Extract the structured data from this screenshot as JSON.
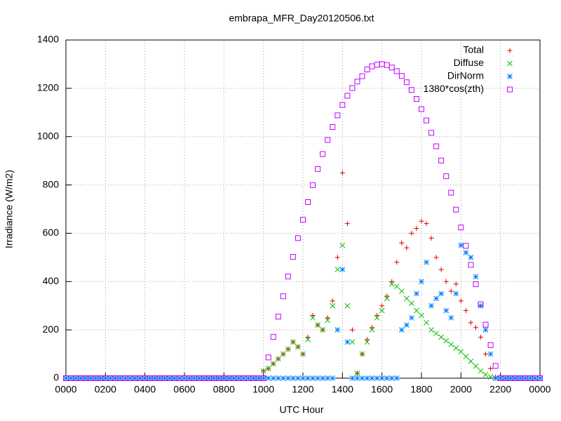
{
  "chart_data": {
    "type": "scatter",
    "title": "embrapa_MFR_Day20120506.txt",
    "xlabel": "UTC Hour",
    "ylabel": "Irradiance (W/m2)",
    "xlim": [
      0,
      24
    ],
    "xticks": [
      {
        "value": 0,
        "label": "0000"
      },
      {
        "value": 2,
        "label": "0200"
      },
      {
        "value": 4,
        "label": "0400"
      },
      {
        "value": 6,
        "label": "0600"
      },
      {
        "value": 8,
        "label": "0800"
      },
      {
        "value": 10,
        "label": "1000"
      },
      {
        "value": 12,
        "label": "1200"
      },
      {
        "value": 14,
        "label": "1400"
      },
      {
        "value": 16,
        "label": "1600"
      },
      {
        "value": 18,
        "label": "1800"
      },
      {
        "value": 20,
        "label": "2000"
      },
      {
        "value": 22,
        "label": "2200"
      },
      {
        "value": 24,
        "label": "0000"
      }
    ],
    "ylim": [
      0,
      1400
    ],
    "yticks": [
      0,
      200,
      400,
      600,
      800,
      1000,
      1200,
      1400
    ],
    "grid": true,
    "legend": "top right",
    "x": [
      0,
      0.25,
      0.5,
      0.75,
      1,
      1.25,
      1.5,
      1.75,
      2,
      2.25,
      2.5,
      2.75,
      3,
      3.25,
      3.5,
      3.75,
      4,
      4.25,
      4.5,
      4.75,
      5,
      5.25,
      5.5,
      5.75,
      6,
      6.25,
      6.5,
      6.75,
      7,
      7.25,
      7.5,
      7.75,
      8,
      8.25,
      8.5,
      8.75,
      9,
      9.25,
      9.5,
      9.75,
      10,
      10.25,
      10.5,
      10.75,
      11,
      11.25,
      11.5,
      11.75,
      12,
      12.25,
      12.5,
      12.75,
      13,
      13.25,
      13.5,
      13.75,
      14,
      14.25,
      14.5,
      14.75,
      15,
      15.25,
      15.5,
      15.75,
      16,
      16.25,
      16.5,
      16.75,
      17,
      17.25,
      17.5,
      17.75,
      18,
      18.25,
      18.5,
      18.75,
      19,
      19.25,
      19.5,
      19.75,
      20,
      20.25,
      20.5,
      20.75,
      21,
      21.25,
      21.5,
      21.75,
      22,
      22.25,
      22.5,
      22.75,
      23,
      23.25,
      23.5,
      23.75,
      24
    ],
    "series": [
      {
        "name": "Total",
        "color": "#e00000",
        "marker": "plus",
        "values": [
          0,
          0,
          0,
          0,
          0,
          0,
          0,
          0,
          0,
          0,
          0,
          0,
          0,
          0,
          0,
          0,
          0,
          0,
          0,
          0,
          0,
          0,
          0,
          0,
          0,
          0,
          0,
          0,
          0,
          0,
          0,
          0,
          0,
          0,
          0,
          0,
          0,
          0,
          0,
          0,
          30,
          40,
          60,
          80,
          100,
          120,
          150,
          130,
          100,
          170,
          260,
          220,
          200,
          250,
          320,
          500,
          850,
          640,
          200,
          20,
          100,
          160,
          210,
          260,
          300,
          340,
          400,
          480,
          560,
          540,
          600,
          620,
          650,
          640,
          580,
          500,
          450,
          400,
          360,
          390,
          320,
          280,
          230,
          210,
          170,
          100,
          40,
          5,
          0,
          0,
          0,
          0,
          0,
          0,
          0,
          0,
          0
        ]
      },
      {
        "name": "Diffuse",
        "color": "#00c000",
        "marker": "cross",
        "values": [
          0,
          0,
          0,
          0,
          0,
          0,
          0,
          0,
          0,
          0,
          0,
          0,
          0,
          0,
          0,
          0,
          0,
          0,
          0,
          0,
          0,
          0,
          0,
          0,
          0,
          0,
          0,
          0,
          0,
          0,
          0,
          0,
          0,
          0,
          0,
          0,
          0,
          0,
          0,
          0,
          30,
          40,
          60,
          80,
          100,
          120,
          150,
          130,
          100,
          160,
          250,
          220,
          200,
          240,
          300,
          450,
          550,
          300,
          150,
          20,
          100,
          150,
          200,
          250,
          280,
          330,
          390,
          380,
          360,
          330,
          310,
          280,
          260,
          230,
          200,
          185,
          170,
          155,
          140,
          125,
          110,
          90,
          70,
          50,
          30,
          15,
          5,
          0,
          0,
          0,
          0,
          0,
          0,
          0,
          0,
          0,
          0
        ]
      },
      {
        "name": "DirNorm",
        "color": "#0080ff",
        "marker": "star",
        "values": [
          0,
          0,
          0,
          0,
          0,
          0,
          0,
          0,
          0,
          0,
          0,
          0,
          0,
          0,
          0,
          0,
          0,
          0,
          0,
          0,
          0,
          0,
          0,
          0,
          0,
          0,
          0,
          0,
          0,
          0,
          0,
          0,
          0,
          0,
          0,
          0,
          0,
          0,
          0,
          0,
          0,
          0,
          0,
          0,
          0,
          0,
          0,
          0,
          0,
          0,
          0,
          0,
          0,
          0,
          0,
          200,
          450,
          150,
          0,
          0,
          0,
          0,
          0,
          0,
          0,
          0,
          0,
          0,
          200,
          220,
          250,
          350,
          400,
          480,
          300,
          330,
          350,
          280,
          250,
          350,
          550,
          520,
          500,
          420,
          300,
          200,
          100,
          0,
          0,
          0,
          0,
          0,
          0,
          0,
          0,
          0,
          0
        ]
      },
      {
        "name": "1380*cos(zth)",
        "color": "#c000ff",
        "marker": "square",
        "values": [
          0,
          0,
          0,
          0,
          0,
          0,
          0,
          0,
          0,
          0,
          0,
          0,
          0,
          0,
          0,
          0,
          0,
          0,
          0,
          0,
          0,
          0,
          0,
          0,
          0,
          0,
          0,
          0,
          0,
          0,
          0,
          0,
          0,
          0,
          0,
          0,
          0,
          0,
          0,
          0,
          0,
          86,
          171,
          255,
          339,
          421,
          502,
          580,
          656,
          729,
          799,
          866,
          928,
          986,
          1040,
          1088,
          1131,
          1169,
          1201,
          1228,
          1250,
          1278,
          1291,
          1298,
          1300,
          1296,
          1286,
          1271,
          1251,
          1225,
          1193,
          1156,
          1114,
          1067,
          1016,
          960,
          901,
          836,
          768,
          698,
          624,
          548,
          469,
          389,
          306,
          222,
          137,
          51,
          0,
          0,
          0,
          0,
          0,
          0,
          0,
          0,
          0
        ]
      }
    ]
  }
}
